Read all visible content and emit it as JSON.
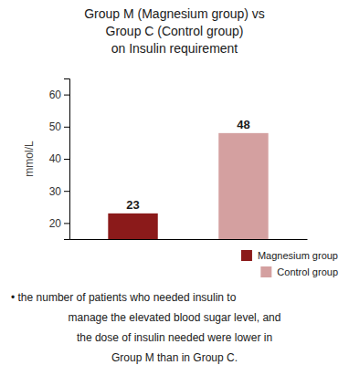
{
  "chart_data": {
    "type": "bar",
    "title": "Group M (Magnesium group) vs\nGroup C (Control group)\non Insulin requirement",
    "categories": [
      "Magnesium group",
      "Control group"
    ],
    "values": [
      23,
      48
    ],
    "colors": [
      "#8B1A1A",
      "#D4A0A0"
    ],
    "ylabel": "mmol/L",
    "ylim": [
      15,
      65
    ],
    "yticks": [
      20,
      30,
      40,
      50,
      60
    ],
    "data_labels": true,
    "tick_labels": "y",
    "legend": "lower right",
    "grid": false,
    "annotations": [
      "•  the number of patients who needed insulin to",
      "manage the elevated blood sugar level, and",
      "the dose of insulin needed were lower in",
      "Group M than in Group C."
    ]
  }
}
